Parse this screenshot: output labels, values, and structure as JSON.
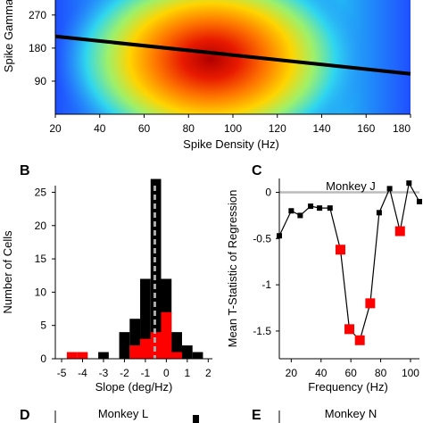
{
  "chart_data": [
    {
      "panel_letter": "",
      "type": "heatmap",
      "xlabel": "Spike Density (Hz)",
      "ylabel": "Spike Gamma",
      "x_ticks": [
        "20",
        "40",
        "60",
        "80",
        "100",
        "120",
        "140",
        "160",
        "180"
      ],
      "y_ticks": [
        "90",
        "180",
        "270"
      ],
      "xlim": [
        20,
        180
      ],
      "ylim": [
        0,
        340
      ],
      "regression_line": {
        "x": [
          20,
          180
        ],
        "y": [
          212,
          110
        ]
      },
      "hotspot": {
        "x": 90,
        "y": 150
      },
      "colormap": [
        "#00008f",
        "#1f5bff",
        "#22d3f5",
        "#86f27a",
        "#ffe100",
        "#ff7a00",
        "#cf0000",
        "#7a0000"
      ]
    },
    {
      "panel_letter": "B",
      "type": "bar",
      "xlabel": "Slope (deg/Hz)",
      "ylabel": "Number of Cells",
      "x_ticks": [
        "-5",
        "-4",
        "-3",
        "-2",
        "-1",
        "0",
        "1",
        "2"
      ],
      "y_ticks": [
        "0",
        "5",
        "10",
        "15",
        "20",
        "25"
      ],
      "xlim": [
        -5.3,
        2.2
      ],
      "ylim": [
        0,
        26
      ],
      "bin_width": 0.5,
      "series": [
        {
          "color": "#000000",
          "bins": [
            {
              "x": -2.0,
              "value": 4
            },
            {
              "x": -1.5,
              "value": 6
            },
            {
              "x": -1.0,
              "value": 12
            },
            {
              "x": -0.5,
              "value": 27
            },
            {
              "x": 0.0,
              "value": 12
            },
            {
              "x": 0.5,
              "value": 4
            },
            {
              "x": 1.0,
              "value": 2
            },
            {
              "x": 1.5,
              "value": 1
            },
            {
              "x": -3.0,
              "value": 1
            }
          ]
        },
        {
          "color": "#ff0000",
          "bins": [
            {
              "x": -4.5,
              "value": 1
            },
            {
              "x": -4.0,
              "value": 1
            },
            {
              "x": -1.5,
              "value": 2
            },
            {
              "x": -1.0,
              "value": 3
            },
            {
              "x": -0.5,
              "value": 4
            },
            {
              "x": 0.0,
              "value": 7
            },
            {
              "x": 0.5,
              "value": 1
            }
          ]
        }
      ],
      "reference_line_x": -0.55
    },
    {
      "panel_letter": "C",
      "type": "line",
      "title": "Monkey J",
      "xlabel": "Frequency (Hz)",
      "ylabel": "Mean T-Statistic of Regression",
      "x_ticks": [
        "20",
        "40",
        "60",
        "80",
        "100"
      ],
      "y_ticks": [
        "0",
        "-0.5",
        "-1",
        "-1.5"
      ],
      "xlim": [
        12,
        106
      ],
      "ylim": [
        -1.8,
        0.15
      ],
      "x": [
        12,
        20,
        26,
        33,
        39,
        46,
        53,
        59,
        66,
        73,
        79,
        86,
        93,
        99,
        106
      ],
      "y": [
        -0.47,
        -0.2,
        -0.25,
        -0.15,
        -0.17,
        -0.17,
        -0.62,
        -1.48,
        -1.6,
        -1.2,
        -0.22,
        0.04,
        -0.42,
        0.1,
        -0.1
      ],
      "significant": [
        false,
        false,
        false,
        false,
        false,
        false,
        true,
        true,
        true,
        true,
        false,
        false,
        true,
        false,
        false
      ],
      "significant_color": "#ff0000"
    },
    {
      "panel_letter": "D",
      "type": "line",
      "title": "Monkey L"
    },
    {
      "panel_letter": "E",
      "type": "line",
      "title": "Monkey N"
    }
  ]
}
